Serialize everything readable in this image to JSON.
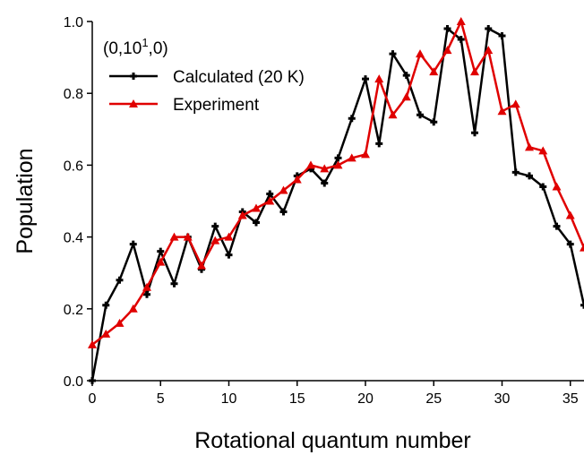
{
  "chart_data": {
    "type": "line",
    "xlabel": "Rotational quantum number",
    "ylabel": "Population",
    "xlim": [
      0,
      36
    ],
    "ylim": [
      0.0,
      1.0
    ],
    "xticks": [
      0,
      5,
      10,
      15,
      20,
      25,
      30,
      35
    ],
    "yticks": [
      "0.0",
      "0.2",
      "0.4",
      "0.6",
      "0.8",
      "1.0"
    ],
    "annotation": {
      "prefix": "(0,10",
      "superscript": "1",
      "suffix": ",0)"
    },
    "legend_placement": "top-left",
    "grid": false,
    "series": [
      {
        "name": "Calculated (20 K)",
        "color": "#000000",
        "marker": "plus",
        "x": [
          0,
          1,
          2,
          3,
          4,
          5,
          6,
          7,
          8,
          9,
          10,
          11,
          12,
          13,
          14,
          15,
          16,
          17,
          18,
          19,
          20,
          21,
          22,
          23,
          24,
          25,
          26,
          27,
          28,
          29,
          30,
          31,
          32,
          33,
          34,
          35,
          36
        ],
        "values": [
          0.0,
          0.21,
          0.28,
          0.38,
          0.24,
          0.36,
          0.27,
          0.4,
          0.31,
          0.43,
          0.35,
          0.47,
          0.44,
          0.52,
          0.47,
          0.57,
          0.59,
          0.55,
          0.62,
          0.73,
          0.84,
          0.66,
          0.91,
          0.85,
          0.74,
          0.72,
          0.98,
          0.95,
          0.69,
          0.98,
          0.96,
          0.58,
          0.57,
          0.54,
          0.43,
          0.38,
          0.21
        ]
      },
      {
        "name": "Experiment",
        "color": "#e00000",
        "marker": "triangle",
        "x": [
          0,
          1,
          2,
          3,
          4,
          5,
          6,
          7,
          8,
          9,
          10,
          11,
          12,
          13,
          14,
          15,
          16,
          17,
          18,
          19,
          20,
          21,
          22,
          23,
          24,
          25,
          26,
          27,
          28,
          29,
          30,
          31,
          32,
          33,
          34,
          35,
          36
        ],
        "values": [
          0.1,
          0.13,
          0.16,
          0.2,
          0.26,
          0.33,
          0.4,
          0.4,
          0.32,
          0.39,
          0.4,
          0.46,
          0.48,
          0.5,
          0.53,
          0.56,
          0.6,
          0.59,
          0.6,
          0.62,
          0.63,
          0.84,
          0.74,
          0.79,
          0.91,
          0.86,
          0.92,
          1.0,
          0.86,
          0.92,
          0.75,
          0.77,
          0.65,
          0.64,
          0.54,
          0.46,
          0.37
        ]
      }
    ]
  }
}
